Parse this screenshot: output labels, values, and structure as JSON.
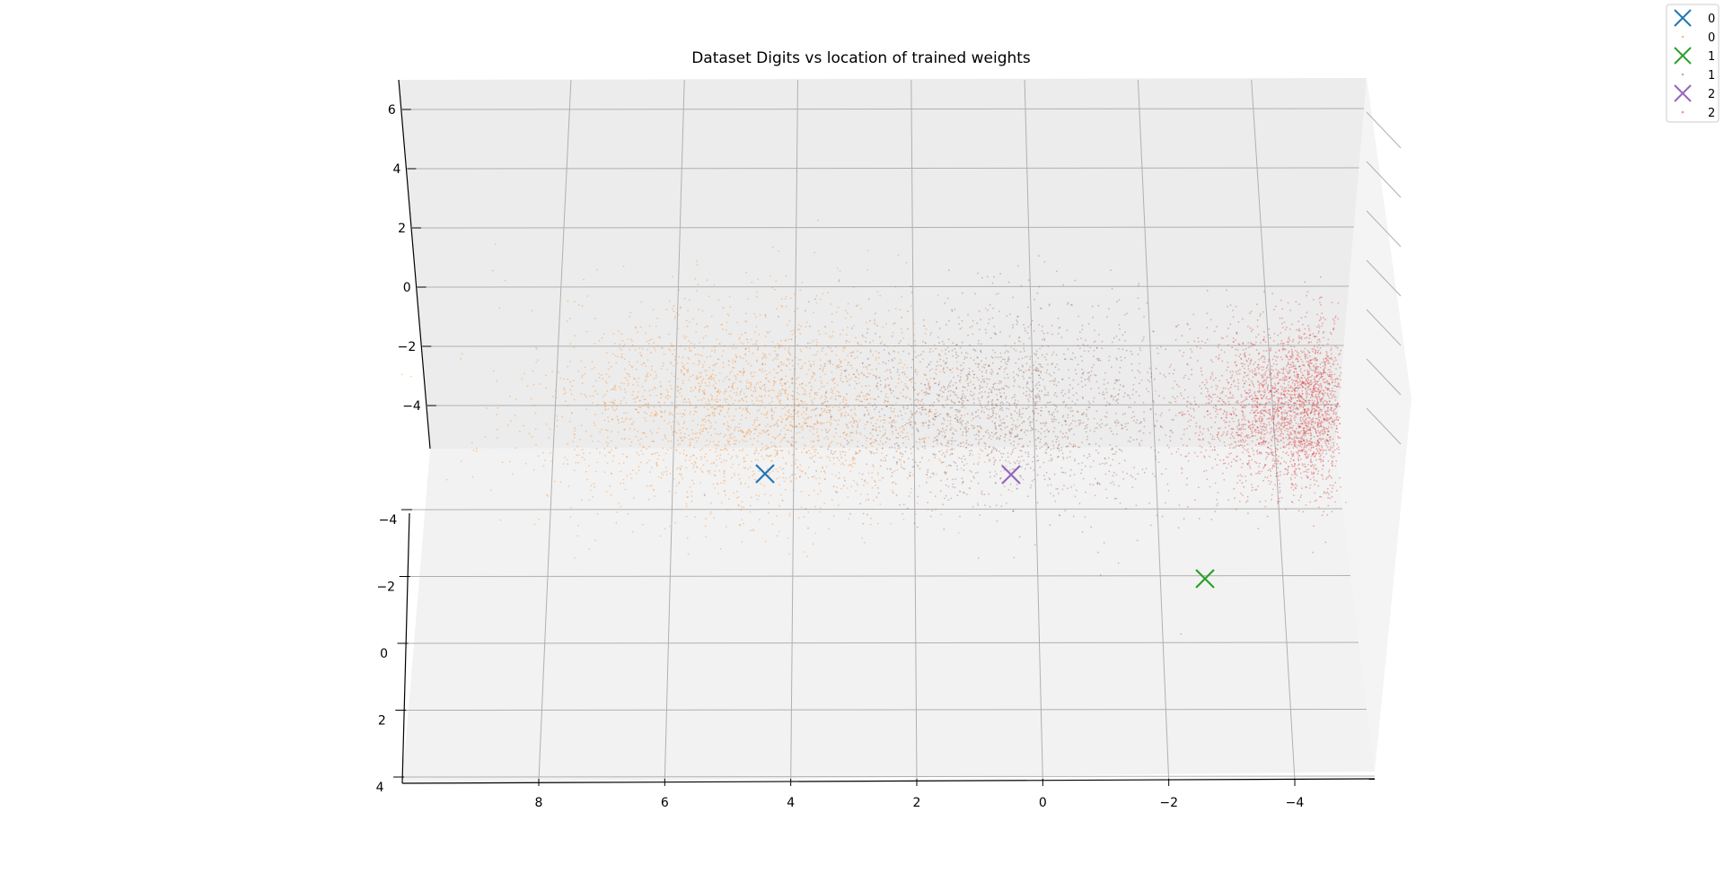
{
  "chart_data": {
    "type": "scatter",
    "title": "Dataset Digits vs location of trained weights",
    "xlabel": "",
    "ylabel": "",
    "zlabel": "",
    "x_ticks": [
      "8",
      "6",
      "4",
      "2",
      "0",
      "−2",
      "−4"
    ],
    "x_tick_values": [
      8,
      6,
      4,
      2,
      0,
      -2,
      -4
    ],
    "y_ticks": [
      "4",
      "2",
      "0",
      "−2",
      "−4"
    ],
    "y_tick_values": [
      4,
      2,
      0,
      -2,
      -4
    ],
    "z_ticks": [
      "6",
      "4",
      "2",
      "0",
      "−2",
      "−4"
    ],
    "z_tick_values": [
      6,
      4,
      2,
      0,
      -2,
      -4
    ],
    "grid": true,
    "legend_position": "top-right",
    "point_clouds": [
      {
        "name": "0",
        "color": "#ff7f0e",
        "x_center": 4.6,
        "x_spread": 1.7,
        "y_center": -2.9,
        "y_spread": 1.5,
        "z_center": -4.2,
        "z_spread": 1.6,
        "count": 2600
      },
      {
        "name": "1",
        "color": "#8c564b",
        "x_center": 0.6,
        "x_spread": 1.6,
        "y_center": -3.2,
        "y_spread": 1.4,
        "z_center": -3.0,
        "z_spread": 1.5,
        "count": 2200
      },
      {
        "name": "2",
        "color": "#d62728",
        "x_center": -3.6,
        "x_spread": 0.6,
        "y_center": -3.2,
        "y_spread": 1.2,
        "z_center": -3.4,
        "z_spread": 1.3,
        "count": 2600
      }
    ],
    "weights": [
      {
        "name": "0",
        "color": "#1f77b4",
        "x": 4.4,
        "y": -4.4,
        "z": -5.6
      },
      {
        "name": "1",
        "color": "#2ca02c",
        "x": -2.5,
        "y": -2.0,
        "z": -5.6
      },
      {
        "name": "2",
        "color": "#9467bd",
        "x": 0.5,
        "y": -4.4,
        "z": -5.6
      }
    ],
    "legend": [
      {
        "label": "0",
        "marker": "x",
        "color": "#1f77b4"
      },
      {
        "label": "0",
        "marker": "dot",
        "color": "#ff7f0e"
      },
      {
        "label": "1",
        "marker": "x",
        "color": "#2ca02c"
      },
      {
        "label": "1",
        "marker": "dot",
        "color": "#8c564b"
      },
      {
        "label": "2",
        "marker": "x",
        "color": "#9467bd"
      },
      {
        "label": "2",
        "marker": "dot",
        "color": "#d62728"
      }
    ]
  }
}
